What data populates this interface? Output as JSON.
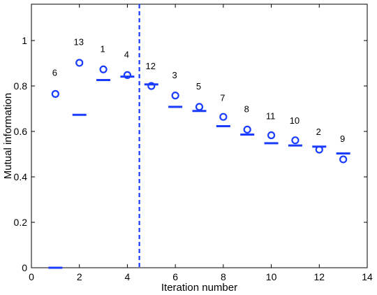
{
  "chart_data": {
    "type": "scatter",
    "title": "",
    "xlabel": "Iteration number",
    "ylabel": "Mutual information",
    "xlim": [
      0,
      14
    ],
    "ylim": [
      0,
      1.16
    ],
    "xticks": [
      0,
      2,
      4,
      6,
      8,
      10,
      12,
      14
    ],
    "yticks": [
      0,
      0.2,
      0.4,
      0.6,
      0.8,
      1
    ],
    "grid": false,
    "color": "#1a3cff",
    "divider_x": 4.5,
    "series": [
      {
        "marker": "circle",
        "x": [
          1,
          2,
          3,
          4,
          5,
          6,
          7,
          8,
          9,
          10,
          11,
          12,
          13
        ],
        "y": [
          0.765,
          0.902,
          0.873,
          0.848,
          0.8,
          0.758,
          0.708,
          0.664,
          0.608,
          0.583,
          0.561,
          0.52,
          0.477
        ]
      },
      {
        "marker": "hline",
        "x": [
          1,
          2,
          3,
          4,
          5,
          6,
          7,
          8,
          9,
          10,
          11,
          12,
          13
        ],
        "y": [
          0.0,
          0.673,
          0.826,
          0.841,
          0.807,
          0.708,
          0.69,
          0.623,
          0.586,
          0.548,
          0.538,
          0.533,
          0.503
        ]
      }
    ],
    "annotations": [
      {
        "x": 1,
        "y": 0.86,
        "text": "6"
      },
      {
        "x": 2,
        "y": 0.995,
        "text": "13"
      },
      {
        "x": 3,
        "y": 0.965,
        "text": "1"
      },
      {
        "x": 4,
        "y": 0.94,
        "text": "4"
      },
      {
        "x": 5,
        "y": 0.89,
        "text": "12"
      },
      {
        "x": 6,
        "y": 0.85,
        "text": "3"
      },
      {
        "x": 7,
        "y": 0.8,
        "text": "5"
      },
      {
        "x": 8,
        "y": 0.75,
        "text": "7"
      },
      {
        "x": 9,
        "y": 0.7,
        "text": "8"
      },
      {
        "x": 10,
        "y": 0.67,
        "text": "11"
      },
      {
        "x": 11,
        "y": 0.65,
        "text": "10"
      },
      {
        "x": 12,
        "y": 0.6,
        "text": "2"
      },
      {
        "x": 13,
        "y": 0.57,
        "text": "9"
      }
    ]
  }
}
